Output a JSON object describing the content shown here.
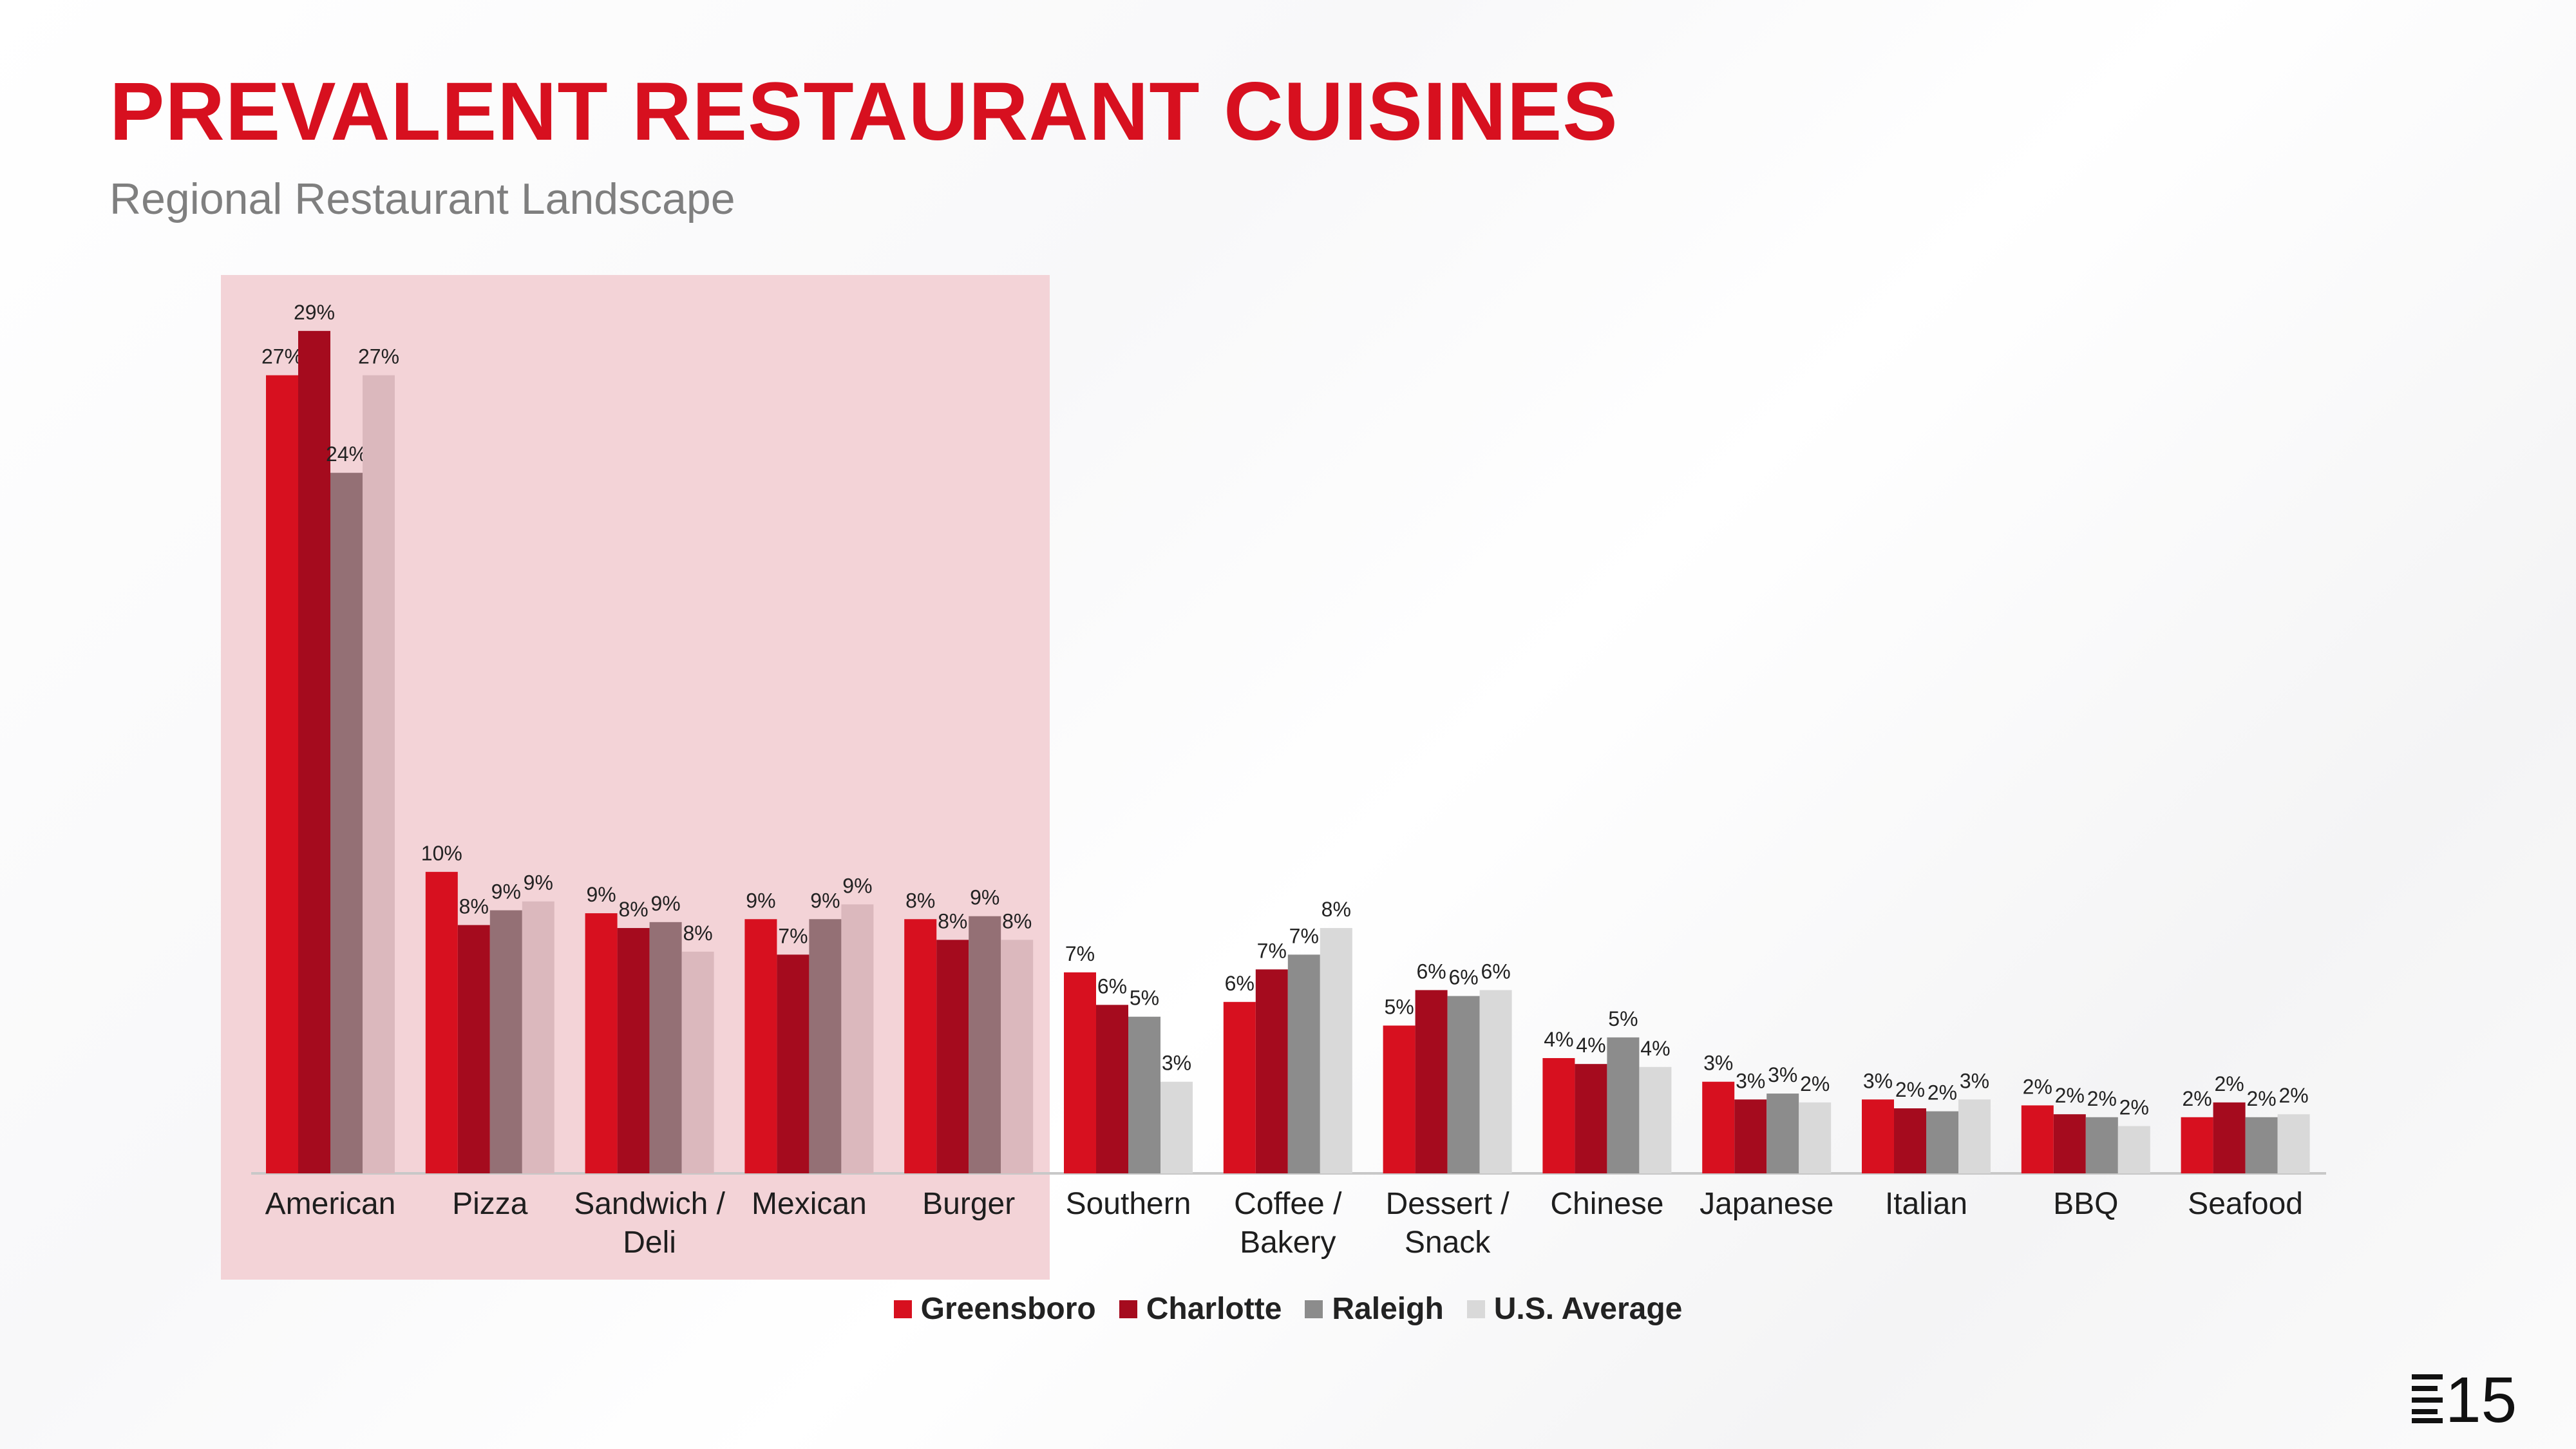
{
  "header": {
    "title": "PREVALENT RESTAURANT CUISINES",
    "subtitle": "Regional Restaurant Landscape"
  },
  "logo": {
    "text": "15",
    "icon": "e15-logo-icon"
  },
  "colors": {
    "greensboro": "#d7101f",
    "charlotte": "#a50b1e",
    "raleigh": "#8c8c8c",
    "raleigh_highlight": "#947075",
    "us_average": "#d9d9d9",
    "us_average_highlight": "#dbb8bd",
    "highlight_band": "#f3d3d7",
    "title": "#d7101f"
  },
  "chart_data": {
    "type": "bar",
    "title": "PREVALENT RESTAURANT CUISINES",
    "xlabel": "",
    "ylabel": "",
    "ylim": [
      0,
      30
    ],
    "grid": false,
    "legend": "bottom-center",
    "highlighted_categories": [
      "American",
      "Pizza",
      "Sandwich / Deli",
      "Mexican",
      "Burger"
    ],
    "categories": [
      [
        "American"
      ],
      [
        "Pizza"
      ],
      [
        "Sandwich /",
        "Deli"
      ],
      [
        "Mexican"
      ],
      [
        "Burger"
      ],
      [
        "Southern"
      ],
      [
        "Coffee /",
        "Bakery"
      ],
      [
        "Dessert /",
        "Snack"
      ],
      [
        "Chinese"
      ],
      [
        "Japanese"
      ],
      [
        "Italian"
      ],
      [
        "BBQ"
      ],
      [
        "Seafood"
      ]
    ],
    "series": [
      {
        "name": "Greensboro",
        "values": [
          27,
          10,
          9,
          9,
          8,
          7,
          6,
          5,
          4,
          3,
          3,
          2,
          2
        ],
        "raw": [
          27,
          10.2,
          8.8,
          8.6,
          8.6,
          6.8,
          5.8,
          5.0,
          3.9,
          3.1,
          2.5,
          2.3,
          1.9
        ]
      },
      {
        "name": "Charlotte",
        "values": [
          29,
          8,
          8,
          7,
          8,
          6,
          7,
          6,
          4,
          3,
          2,
          2,
          2
        ],
        "raw": [
          28.5,
          8.4,
          8.3,
          7.4,
          7.9,
          5.7,
          6.9,
          6.2,
          3.7,
          2.5,
          2.2,
          2.0,
          2.4
        ]
      },
      {
        "name": "Raleigh",
        "values": [
          24,
          9,
          9,
          9,
          9,
          5,
          7,
          6,
          5,
          3,
          2,
          2,
          2
        ],
        "raw": [
          23.7,
          8.9,
          8.5,
          8.6,
          8.7,
          5.3,
          7.4,
          6.0,
          4.6,
          2.7,
          2.1,
          1.9,
          1.9
        ]
      },
      {
        "name": "U.S. Average",
        "values": [
          27,
          9,
          8,
          9,
          8,
          3,
          8,
          6,
          4,
          2,
          3,
          2,
          2
        ],
        "raw": [
          27,
          9.2,
          7.5,
          9.1,
          7.9,
          3.1,
          8.3,
          6.2,
          3.6,
          2.4,
          2.5,
          1.6,
          2.0
        ]
      }
    ]
  }
}
